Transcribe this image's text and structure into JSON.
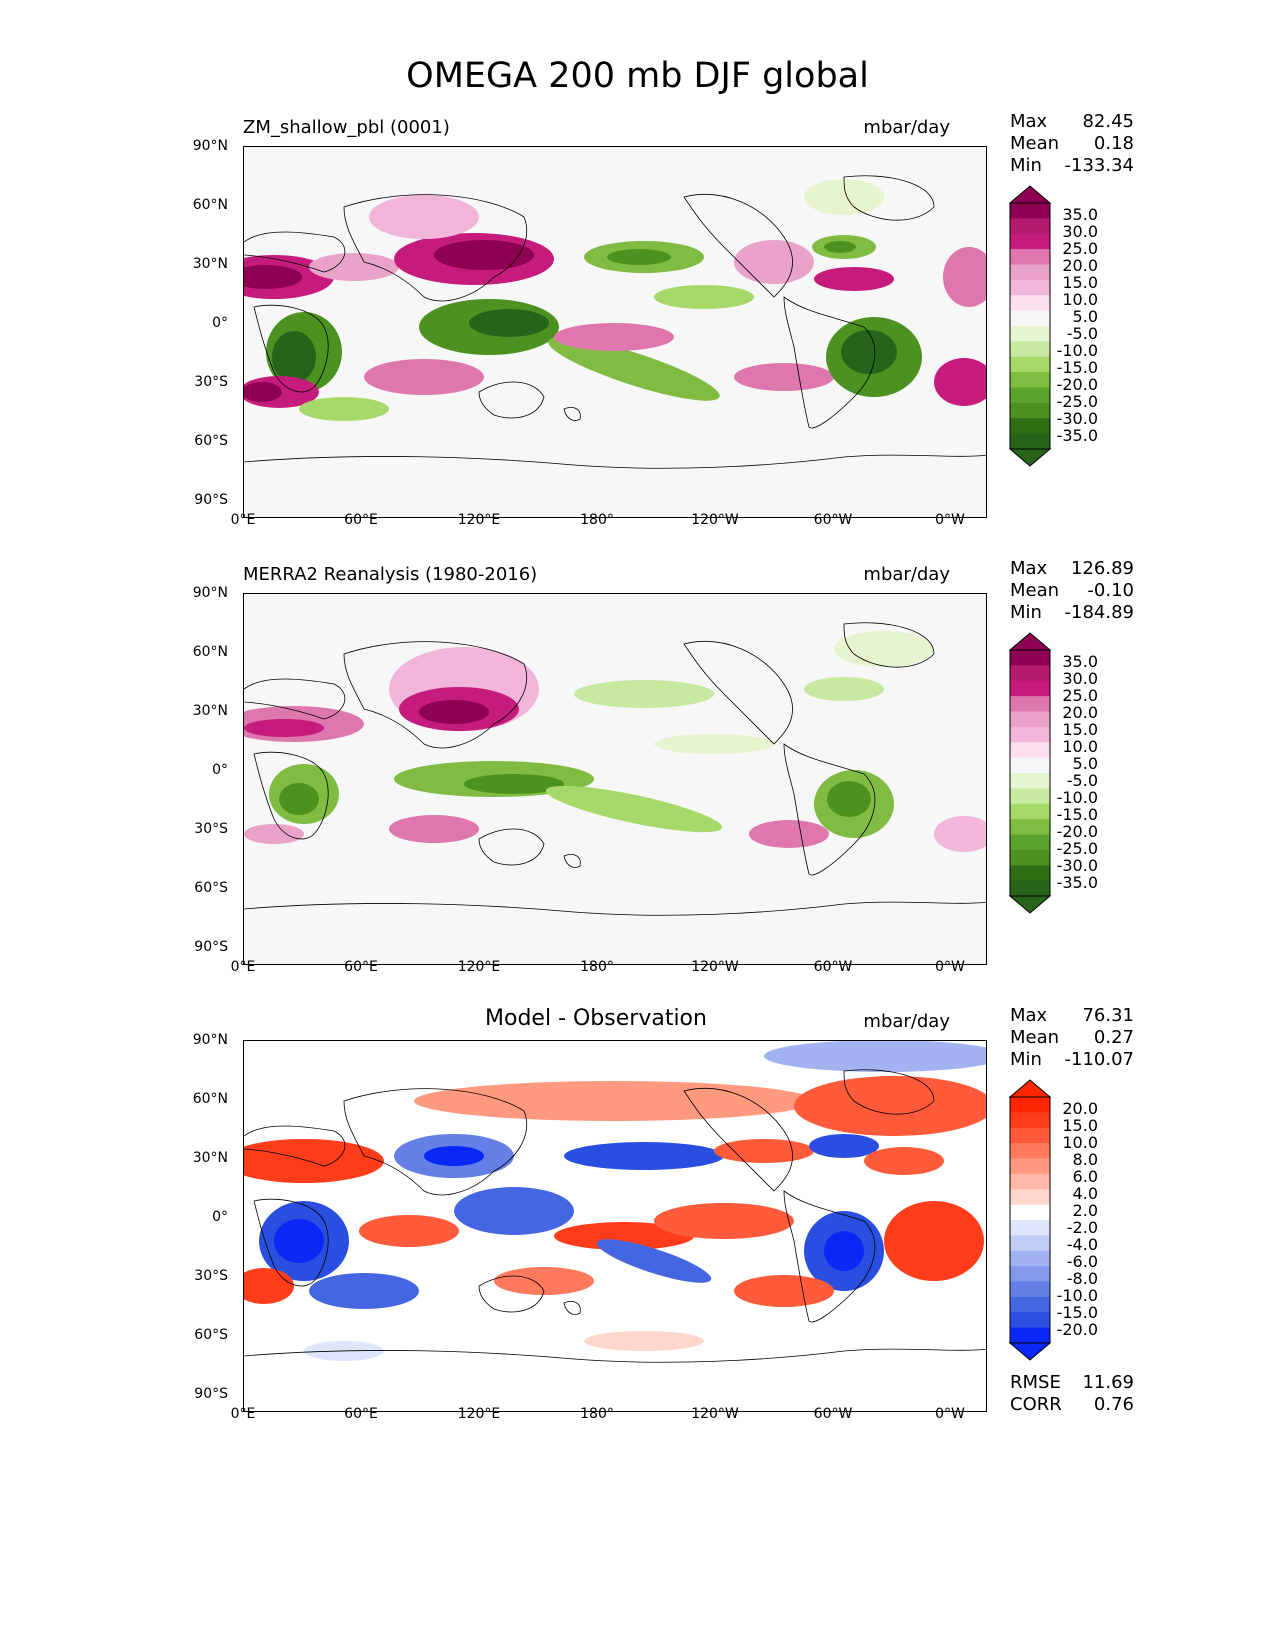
{
  "figure": {
    "title": "OMEGA 200 mb DJF global"
  },
  "panels": [
    {
      "left_title": "ZM_shallow_pbl (0001)",
      "center_title": "",
      "units": "mbar/day",
      "stats": {
        "max_label": "Max",
        "max": "82.45",
        "mean_label": "Mean",
        "mean": "0.18",
        "min_label": "Min",
        "min": "-133.34"
      },
      "colorbar": {
        "labels": [
          "35.0",
          "30.0",
          "25.0",
          "20.0",
          "15.0",
          "10.0",
          "5.0",
          "-5.0",
          "-10.0",
          "-15.0",
          "-20.0",
          "-25.0",
          "-30.0",
          "-35.0"
        ],
        "colors": [
          "#8e0152",
          "#b3196d",
          "#c51b7d",
          "#de77ae",
          "#e9a3c9",
          "#f1b6da",
          "#fde0ef",
          "#f7f7f7",
          "#e6f5d0",
          "#c7e9a0",
          "#a6d96a",
          "#7fbc41",
          "#5aa32c",
          "#4d9221",
          "#2f6d15",
          "#276419"
        ]
      },
      "extras": null
    },
    {
      "left_title": "MERRA2 Reanalysis (1980-2016)",
      "center_title": "",
      "units": "mbar/day",
      "stats": {
        "max_label": "Max",
        "max": "126.89",
        "mean_label": "Mean",
        "mean": "-0.10",
        "min_label": "Min",
        "min": "-184.89"
      },
      "colorbar": {
        "labels": [
          "35.0",
          "30.0",
          "25.0",
          "20.0",
          "15.0",
          "10.0",
          "5.0",
          "-5.0",
          "-10.0",
          "-15.0",
          "-20.0",
          "-25.0",
          "-30.0",
          "-35.0"
        ],
        "colors": [
          "#8e0152",
          "#b3196d",
          "#c51b7d",
          "#de77ae",
          "#e9a3c9",
          "#f1b6da",
          "#fde0ef",
          "#f7f7f7",
          "#e6f5d0",
          "#c7e9a0",
          "#a6d96a",
          "#7fbc41",
          "#5aa32c",
          "#4d9221",
          "#2f6d15",
          "#276419"
        ]
      },
      "extras": null
    },
    {
      "left_title": "",
      "center_title": "Model - Observation",
      "units": "mbar/day",
      "stats": {
        "max_label": "Max",
        "max": "76.31",
        "mean_label": "Mean",
        "mean": "0.27",
        "min_label": "Min",
        "min": "-110.07"
      },
      "colorbar": {
        "labels": [
          "20.0",
          "15.0",
          "10.0",
          "8.0",
          "6.0",
          "4.0",
          "2.0",
          "-2.0",
          "-4.0",
          "-6.0",
          "-8.0",
          "-10.0",
          "-15.0",
          "-20.0"
        ],
        "colors": [
          "#ff2600",
          "#ff3d1a",
          "#ff5a3a",
          "#ff7a5c",
          "#ff9a80",
          "#ffb9a6",
          "#ffd6cb",
          "#ffffff",
          "#dfe5fb",
          "#c2cdf6",
          "#a3b3f1",
          "#8499ec",
          "#6480e6",
          "#4466e0",
          "#2a4fe0",
          "#0a28f5"
        ]
      },
      "extras": {
        "rmse_label": "RMSE",
        "rmse": "11.69",
        "corr_label": "CORR",
        "corr": "0.76"
      }
    }
  ],
  "axes": {
    "lat_ticks": [
      "90°N",
      "60°N",
      "30°N",
      "0°",
      "30°S",
      "60°S",
      "90°S"
    ],
    "lon_ticks": [
      "0°E",
      "60°E",
      "120°E",
      "180°",
      "120°W",
      "60°W",
      "0°W"
    ]
  },
  "colors": {
    "land_outline": "#000000",
    "background_pos": "#f7f7f7"
  }
}
